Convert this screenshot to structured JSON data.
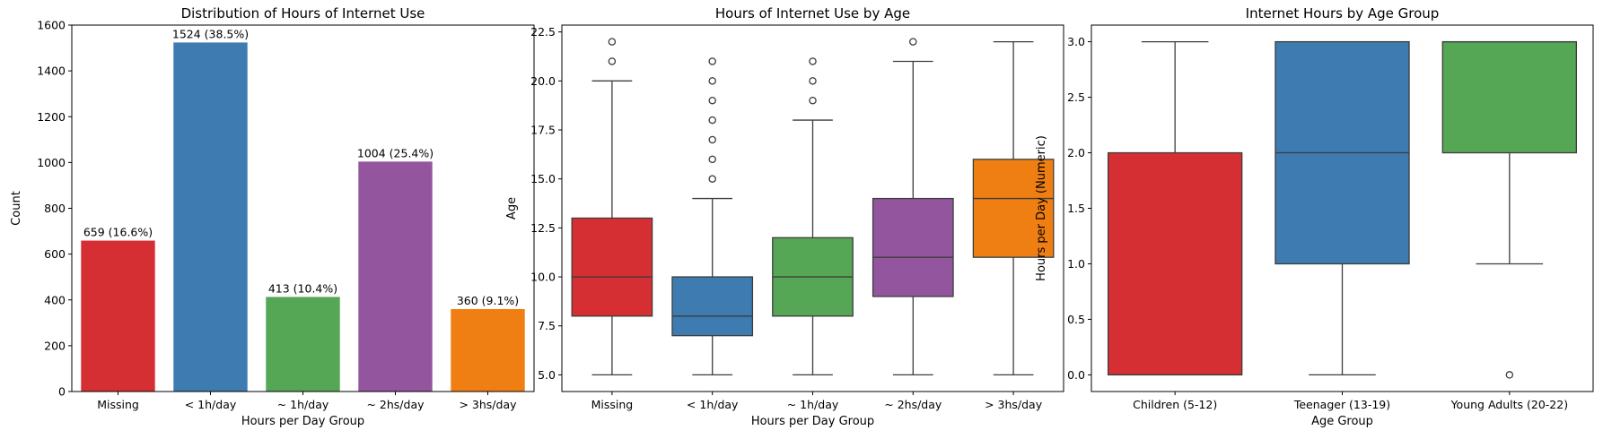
{
  "chart_data": [
    {
      "type": "bar",
      "title": "Distribution of Hours of Internet Use",
      "xlabel": "Hours per Day Group",
      "ylabel": "Count",
      "categories": [
        "Missing",
        "< 1h/day",
        "~ 1h/day",
        "~ 2hs/day",
        "> 3hs/day"
      ],
      "values": [
        659,
        1524,
        413,
        1004,
        360
      ],
      "bar_labels": [
        "659 (16.6%)",
        "1524 (38.5%)",
        "413 (10.4%)",
        "1004 (25.4%)",
        "360 (9.1%)"
      ],
      "colors": [
        "#d62f33",
        "#3d7bb0",
        "#55a655",
        "#93559d",
        "#ef7f12"
      ],
      "ylim": [
        0,
        1600
      ],
      "yticks": [
        0,
        200,
        400,
        600,
        800,
        1000,
        1200,
        1400,
        1600
      ],
      "ytick_labels": [
        "0",
        "200",
        "400",
        "600",
        "800",
        "1000",
        "1200",
        "1400",
        "1600"
      ]
    },
    {
      "type": "box",
      "title": "Hours of Internet Use by Age",
      "xlabel": "Hours per Day Group",
      "ylabel": "Age",
      "categories": [
        "Missing",
        "< 1h/day",
        "~ 1h/day",
        "~ 2hs/day",
        "> 3hs/day"
      ],
      "colors": [
        "#d62f33",
        "#3d7bb0",
        "#55a655",
        "#93559d",
        "#ef7f12"
      ],
      "ylim": [
        4.15,
        22.85
      ],
      "yticks": [
        5.0,
        7.5,
        10.0,
        12.5,
        15.0,
        17.5,
        20.0,
        22.5
      ],
      "ytick_labels": [
        "5.0",
        "7.5",
        "10.0",
        "12.5",
        "15.0",
        "17.5",
        "20.0",
        "22.5"
      ],
      "boxes": [
        {
          "whislo": 5,
          "q1": 8,
          "med": 10,
          "q3": 13,
          "whishi": 20,
          "fliers": [
            21,
            22
          ]
        },
        {
          "whislo": 5,
          "q1": 7,
          "med": 8,
          "q3": 10,
          "whishi": 14,
          "fliers": [
            15,
            16,
            17,
            18,
            19,
            20,
            21
          ]
        },
        {
          "whislo": 5,
          "q1": 8,
          "med": 10,
          "q3": 12,
          "whishi": 18,
          "fliers": [
            19,
            20,
            21
          ]
        },
        {
          "whislo": 5,
          "q1": 9,
          "med": 11,
          "q3": 14,
          "whishi": 21,
          "fliers": [
            22
          ]
        },
        {
          "whislo": 5,
          "q1": 11,
          "med": 14,
          "q3": 16,
          "whishi": 22,
          "fliers": []
        }
      ]
    },
    {
      "type": "box",
      "title": "Internet Hours by Age Group",
      "xlabel": "Age Group",
      "ylabel": "Hours per Day (Numeric)",
      "categories": [
        "Children (5-12)",
        "Teenager (13-19)",
        "Young Adults (20-22)"
      ],
      "colors": [
        "#d62f33",
        "#3d7bb0",
        "#55a655"
      ],
      "ylim": [
        -0.15,
        3.15
      ],
      "yticks": [
        0.0,
        0.5,
        1.0,
        1.5,
        2.0,
        2.5,
        3.0
      ],
      "ytick_labels": [
        "0.0",
        "0.5",
        "1.0",
        "1.5",
        "2.0",
        "2.5",
        "3.0"
      ],
      "boxes": [
        {
          "whislo": 0,
          "q1": 0,
          "med": 0,
          "q3": 2,
          "whishi": 3,
          "fliers": []
        },
        {
          "whislo": 0,
          "q1": 1,
          "med": 2,
          "q3": 3,
          "whishi": 3,
          "fliers": []
        },
        {
          "whislo": 1,
          "q1": 2,
          "med": 3,
          "q3": 3,
          "whishi": 3,
          "fliers": [
            0
          ]
        }
      ]
    }
  ]
}
